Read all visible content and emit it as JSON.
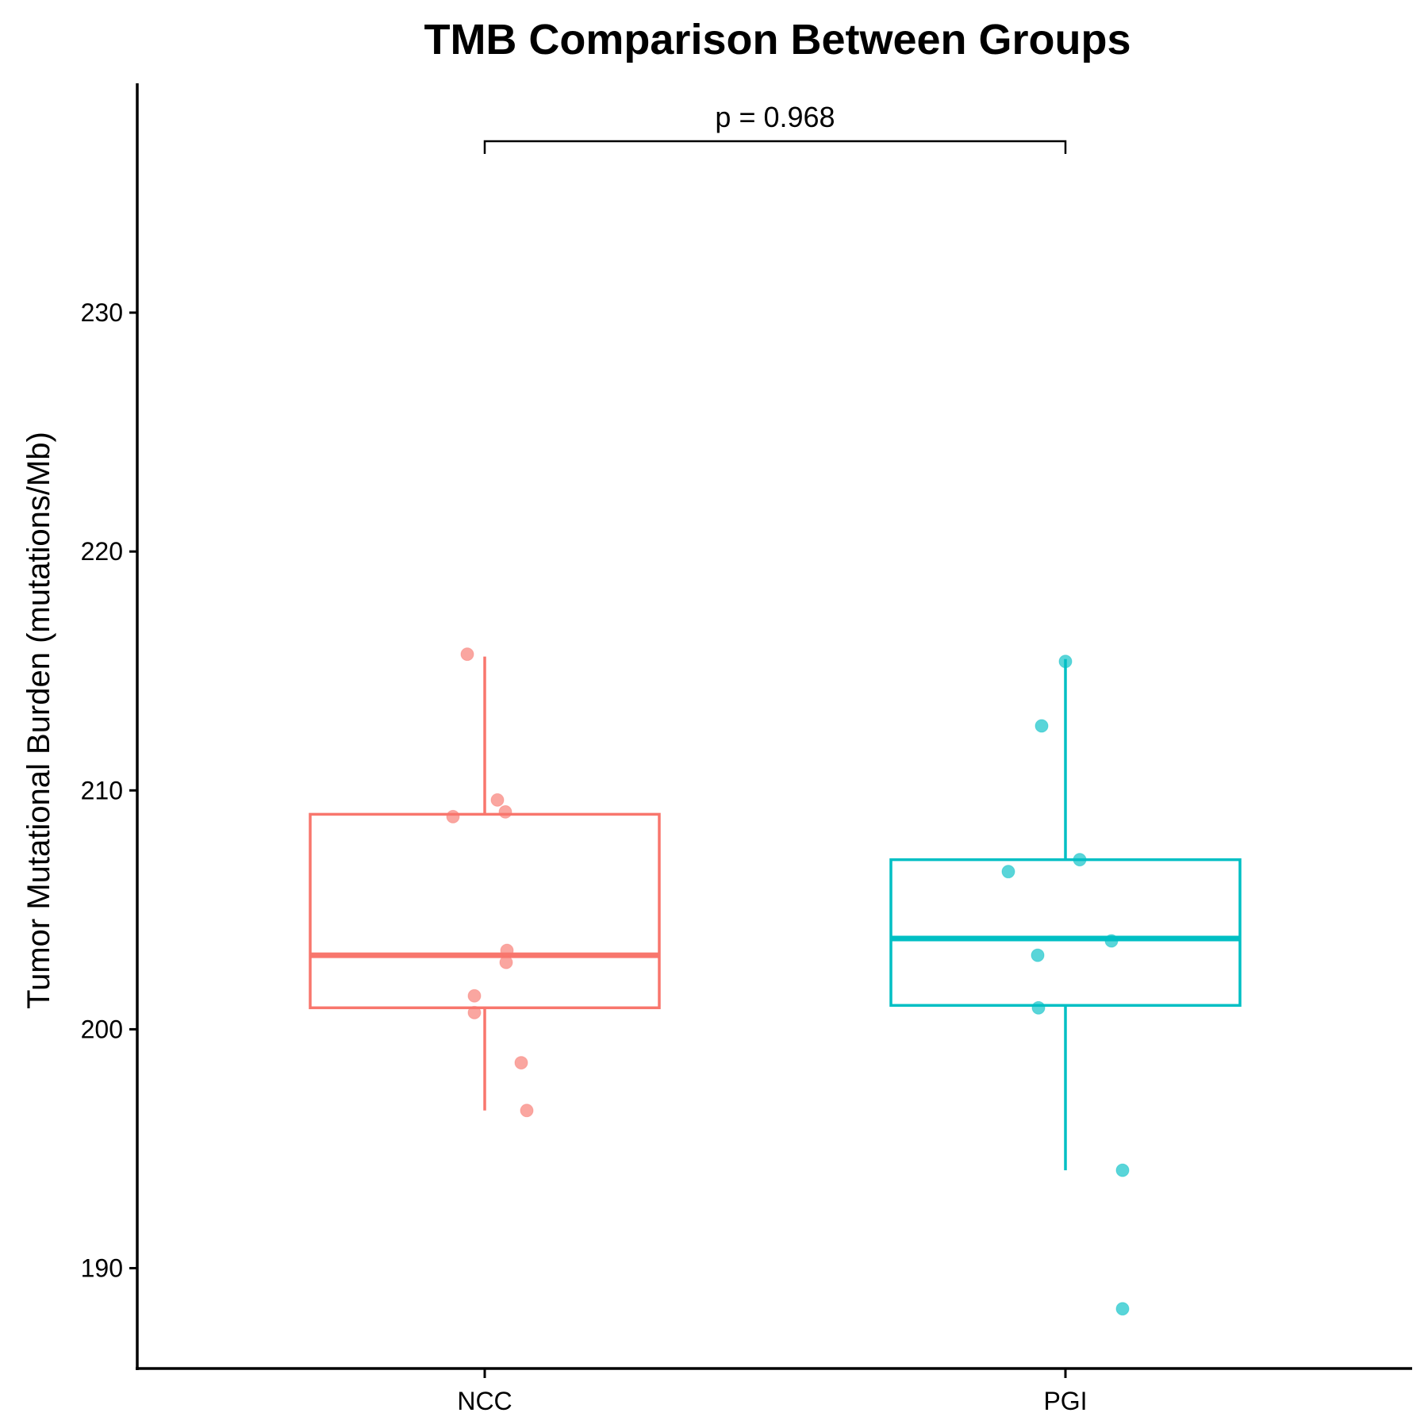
{
  "chart_data": {
    "type": "box",
    "title": "TMB Comparison Between Groups",
    "xlabel": "",
    "ylabel": "Tumor Mutational Burden (mutations/Mb)",
    "ylim": [
      185.8,
      239.6
    ],
    "yticks": [
      190,
      200,
      210,
      220,
      230
    ],
    "grid": false,
    "legend": "none",
    "comparison": {
      "groups": [
        "NCC",
        "PGI"
      ],
      "label": "p = 0.968"
    },
    "groups": [
      {
        "name": "NCC",
        "color": "#F8766D",
        "box": {
          "whisker_low": 196.6,
          "q1": 200.9,
          "median": 203.1,
          "q3": 209.0,
          "whisker_high": 215.6
        },
        "points": [
          215.7,
          209.6,
          209.1,
          208.9,
          203.3,
          202.8,
          201.4,
          200.7,
          198.6,
          196.6
        ]
      },
      {
        "name": "PGI",
        "color": "#00BFC4",
        "box": {
          "whisker_low": 194.1,
          "q1": 201.0,
          "median": 203.8,
          "q3": 207.1,
          "whisker_high": 215.5
        },
        "points": [
          215.4,
          212.7,
          207.1,
          206.6,
          203.7,
          203.1,
          200.9,
          194.1,
          188.3
        ]
      }
    ]
  }
}
